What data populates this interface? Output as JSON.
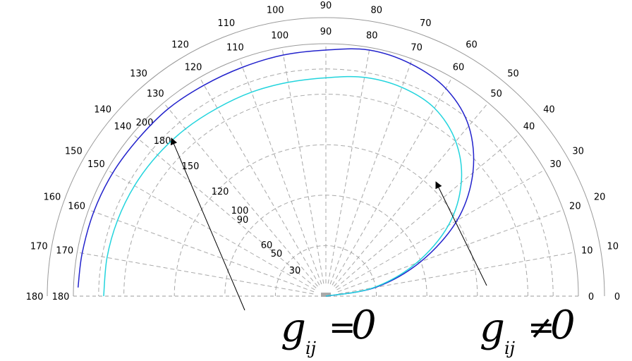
{
  "chart_data": {
    "type": "polar",
    "grid": true,
    "angle_range_deg": [
      0,
      180
    ],
    "outer_angle_ticks": [
      "0",
      "10",
      "20",
      "30",
      "40",
      "50",
      "60",
      "70",
      "80",
      "90",
      "100",
      "110",
      "120",
      "130",
      "140",
      "150",
      "160",
      "170",
      "180"
    ],
    "inner_angle_ticks": [
      "0",
      "10",
      "20",
      "30",
      "40",
      "50",
      "60",
      "70",
      "80",
      "90",
      "100",
      "110",
      "120",
      "130",
      "140",
      "150",
      "160",
      "170",
      "180"
    ],
    "radial_ticks": [
      "30",
      "50",
      "60",
      "90",
      "100",
      "120",
      "150",
      "180",
      "200"
    ],
    "series": [
      {
        "color": "#2222cc",
        "points_deg_r": [
          [
            0,
            0.0
          ],
          [
            10,
            0.2
          ],
          [
            20,
            0.4
          ],
          [
            30,
            0.6
          ],
          [
            40,
            0.76
          ],
          [
            50,
            0.88
          ],
          [
            60,
            0.95
          ],
          [
            70,
            0.98
          ],
          [
            80,
            0.99
          ],
          [
            90,
            0.975
          ],
          [
            100,
            0.97
          ],
          [
            110,
            0.965
          ],
          [
            120,
            0.965
          ],
          [
            130,
            0.97
          ],
          [
            140,
            0.97
          ],
          [
            150,
            0.975
          ],
          [
            160,
            0.978
          ],
          [
            170,
            0.98
          ],
          [
            178,
            0.982
          ]
        ]
      },
      {
        "color": "#22d4dd",
        "points_deg_r": [
          [
            0,
            0.0
          ],
          [
            10,
            0.19
          ],
          [
            20,
            0.38
          ],
          [
            30,
            0.56
          ],
          [
            40,
            0.7
          ],
          [
            50,
            0.8
          ],
          [
            60,
            0.86
          ],
          [
            70,
            0.88
          ],
          [
            80,
            0.88
          ],
          [
            90,
            0.865
          ],
          [
            100,
            0.86
          ],
          [
            110,
            0.86
          ],
          [
            120,
            0.86
          ],
          [
            130,
            0.865
          ],
          [
            140,
            0.87
          ],
          [
            150,
            0.875
          ],
          [
            160,
            0.878
          ],
          [
            170,
            0.88
          ],
          [
            180,
            0.88
          ]
        ]
      }
    ],
    "annotations": [
      {
        "base": "g",
        "sub": "ij",
        "op": "=",
        "rhs": "0"
      },
      {
        "base": "g",
        "sub": "ij",
        "op": "≠",
        "rhs": "0"
      }
    ]
  }
}
